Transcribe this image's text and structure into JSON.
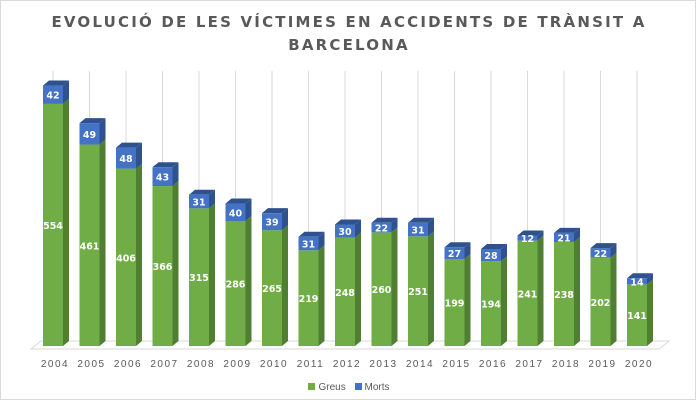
{
  "chart_data": {
    "type": "bar",
    "stacked": true,
    "three_d": true,
    "title": "EVOLUCIÓ DE LES VÍCTIMES EN ACCIDENTS DE TRÀNSIT A BARCELONA",
    "title_lines": [
      "EVOLUCIÓ DE LES VÍCTIMES EN ACCIDENTS DE TRÀNSIT A",
      "BARCELONA"
    ],
    "categories": [
      "2004",
      "2005",
      "2006",
      "2007",
      "2008",
      "2009",
      "2010",
      "2011",
      "2012",
      "2013",
      "2014",
      "2015",
      "2016",
      "2017",
      "2018",
      "2019",
      "2020"
    ],
    "series": [
      {
        "name": "Greus",
        "color": "#70ad47",
        "values": [
          554,
          461,
          406,
          366,
          315,
          286,
          265,
          219,
          248,
          260,
          251,
          199,
          194,
          241,
          238,
          202,
          141
        ]
      },
      {
        "name": "Morts",
        "color": "#4472c4",
        "values": [
          42,
          49,
          48,
          43,
          31,
          40,
          39,
          31,
          30,
          22,
          31,
          27,
          28,
          12,
          21,
          22,
          14
        ]
      }
    ],
    "data_labels": true,
    "grid": "vertical",
    "legend": "bottom",
    "xlabel": "",
    "ylabel": ""
  }
}
